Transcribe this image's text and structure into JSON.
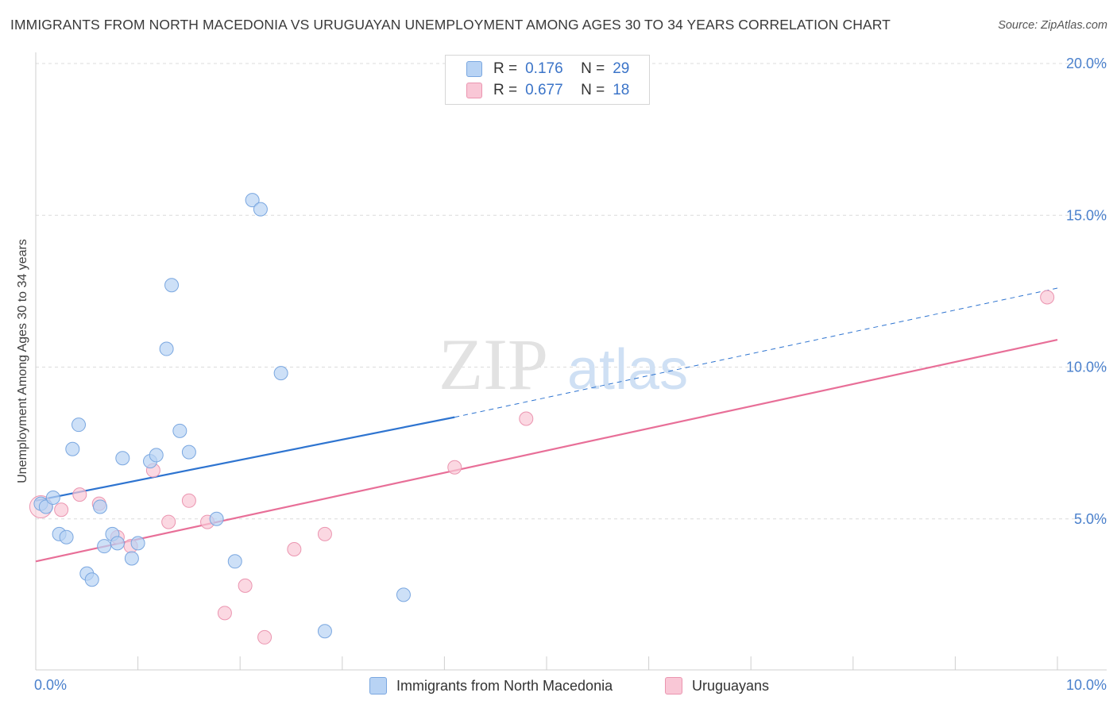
{
  "title": "IMMIGRANTS FROM NORTH MACEDONIA VS URUGUAYAN UNEMPLOYMENT AMONG AGES 30 TO 34 YEARS CORRELATION CHART",
  "source": "Source: ZipAtlas.com",
  "watermark": {
    "zip": "ZIP",
    "atlas": "atlas"
  },
  "legend": {
    "rows": [
      {
        "r_label": "R =",
        "r_value": "0.176",
        "n_label": "N =",
        "n_value": "29"
      },
      {
        "r_label": "R =",
        "r_value": "0.677",
        "n_label": "N =",
        "n_value": "18"
      }
    ]
  },
  "colors": {
    "blue_fill": "#b8d3f4",
    "blue_stroke": "#7aa7e0",
    "blue_line": "#2e74d0",
    "pink_fill": "#f9c7d6",
    "pink_stroke": "#eb95b0",
    "pink_line": "#e86f98",
    "axis_label": "#4a80cc",
    "grid": "#dcdcdc"
  },
  "chart_data": {
    "type": "scatter",
    "title": "IMMIGRANTS FROM NORTH MACEDONIA VS URUGUAYAN UNEMPLOYMENT AMONG AGES 30 TO 34 YEARS CORRELATION CHART",
    "xlabel": "",
    "ylabel": "Unemployment Among Ages 30 to 34 years",
    "xlim": [
      0,
      10
    ],
    "ylim": [
      0,
      20.5
    ],
    "x_tick_labels": [
      "0.0%",
      "10.0%"
    ],
    "y_ticks": [
      5,
      10,
      15,
      20
    ],
    "y_tick_labels": [
      "5.0%",
      "10.0%",
      "15.0%",
      "20.0%"
    ],
    "grid": true,
    "series": [
      {
        "name": "Immigrants from North Macedonia",
        "color": "blue",
        "r": 0.176,
        "n": 29,
        "trend": {
          "x0": 0.0,
          "y0": 5.6,
          "x1": 4.1,
          "y1": 8.35,
          "dash_to_x": 10.0,
          "dash_to_y": 12.6
        },
        "points": [
          {
            "x": 0.05,
            "y": 5.5
          },
          {
            "x": 0.1,
            "y": 5.4
          },
          {
            "x": 0.17,
            "y": 5.7
          },
          {
            "x": 0.23,
            "y": 4.5
          },
          {
            "x": 0.3,
            "y": 4.4
          },
          {
            "x": 0.36,
            "y": 7.3
          },
          {
            "x": 0.42,
            "y": 8.1
          },
          {
            "x": 0.5,
            "y": 3.2
          },
          {
            "x": 0.55,
            "y": 3.0
          },
          {
            "x": 0.63,
            "y": 5.4
          },
          {
            "x": 0.67,
            "y": 4.1
          },
          {
            "x": 0.75,
            "y": 4.5
          },
          {
            "x": 0.8,
            "y": 4.2
          },
          {
            "x": 0.85,
            "y": 7.0
          },
          {
            "x": 0.94,
            "y": 3.7
          },
          {
            "x": 1.0,
            "y": 4.2
          },
          {
            "x": 1.12,
            "y": 6.9
          },
          {
            "x": 1.18,
            "y": 7.1
          },
          {
            "x": 1.28,
            "y": 10.6
          },
          {
            "x": 1.33,
            "y": 12.7
          },
          {
            "x": 1.41,
            "y": 7.9
          },
          {
            "x": 1.5,
            "y": 7.2
          },
          {
            "x": 1.77,
            "y": 5.0
          },
          {
            "x": 1.95,
            "y": 3.6
          },
          {
            "x": 2.12,
            "y": 15.5
          },
          {
            "x": 2.2,
            "y": 15.2
          },
          {
            "x": 2.4,
            "y": 9.8
          },
          {
            "x": 2.83,
            "y": 1.3
          },
          {
            "x": 3.6,
            "y": 2.5
          }
        ]
      },
      {
        "name": "Uruguayans",
        "color": "pink",
        "r": 0.677,
        "n": 18,
        "trend": {
          "x0": 0.0,
          "y0": 3.6,
          "x1": 10.0,
          "y1": 10.9
        },
        "points": [
          {
            "x": 0.05,
            "y": 5.4
          },
          {
            "x": 0.25,
            "y": 5.3
          },
          {
            "x": 0.43,
            "y": 5.8
          },
          {
            "x": 0.62,
            "y": 5.5
          },
          {
            "x": 0.8,
            "y": 4.4
          },
          {
            "x": 0.93,
            "y": 4.1
          },
          {
            "x": 1.15,
            "y": 6.6
          },
          {
            "x": 1.3,
            "y": 4.9
          },
          {
            "x": 1.5,
            "y": 5.6
          },
          {
            "x": 1.68,
            "y": 4.9
          },
          {
            "x": 1.85,
            "y": 1.9
          },
          {
            "x": 2.05,
            "y": 2.8
          },
          {
            "x": 2.24,
            "y": 1.1
          },
          {
            "x": 2.53,
            "y": 4.0
          },
          {
            "x": 2.83,
            "y": 4.5
          },
          {
            "x": 4.1,
            "y": 6.7
          },
          {
            "x": 4.8,
            "y": 8.3
          },
          {
            "x": 9.9,
            "y": 12.3
          }
        ]
      }
    ]
  },
  "bottom_legend": [
    {
      "label": "Immigrants from North Macedonia"
    },
    {
      "label": "Uruguayans"
    }
  ]
}
